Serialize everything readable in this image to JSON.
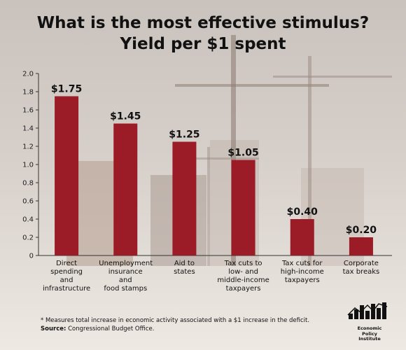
{
  "header": {
    "title_line1": "What is the most effective stimulus?",
    "title_line2": "Yield per $1 spent"
  },
  "footer": {
    "footnote": "* Measures total increase in economic activity associated with a $1 increase in the deficit.",
    "source_label": "Source:",
    "source_text": "Congressional Budget Office."
  },
  "logo": {
    "line1": "Economic",
    "line2": "Policy",
    "line3": "Institute"
  },
  "colors": {
    "bar": "#9b1b26",
    "axis": "#333333"
  },
  "chart_data": {
    "type": "bar",
    "title": "What is the most effective stimulus? Yield per $1 spent",
    "categories": [
      [
        "Direct",
        "spending",
        "and",
        "infrastructure"
      ],
      [
        "Unemployment",
        "insurance",
        "and",
        "food stamps"
      ],
      [
        "Aid to",
        "states"
      ],
      [
        "Tax cuts to",
        "low- and",
        "middle-income",
        "taxpayers"
      ],
      [
        "Tax cuts for",
        "high-income",
        "taxpayers"
      ],
      [
        "Corporate",
        "tax breaks"
      ]
    ],
    "values": [
      1.75,
      1.45,
      1.25,
      1.05,
      0.4,
      0.2
    ],
    "data_labels": [
      "$1.75",
      "$1.45",
      "$1.25",
      "$1.05",
      "$0.40",
      "$0.20"
    ],
    "ylim": [
      0,
      2.0
    ],
    "yticks": [
      "0",
      "0.2",
      "0.4",
      "0.6",
      "0.8",
      "1.0",
      "1.2",
      "1.4",
      "1.6",
      "1.8",
      "2.0"
    ],
    "grid": false
  }
}
